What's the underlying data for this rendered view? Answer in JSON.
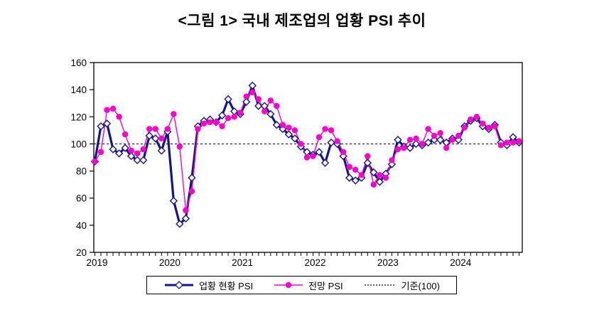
{
  "title": "<그림 1> 국내 제조업의 업황 PSI 추이",
  "colors": {
    "current_line": "#14148C",
    "current_marker_fill": "#FFFFFF",
    "forecast_line": "#FF00CC",
    "baseline_line": "#000000",
    "axis": "#000000",
    "background": "#FFFFFF"
  },
  "legend": {
    "items": [
      {
        "label": "업황 현황 PSI",
        "marker": "diamond",
        "color": "#14148C"
      },
      {
        "label": "전망 PSI",
        "marker": "circle",
        "color": "#FF00CC"
      },
      {
        "label": "기준(100)",
        "marker": "dotted-line",
        "color": "#000000"
      }
    ]
  },
  "chart_data": {
    "type": "line",
    "title": "<그림 1> 국내 제조업의 업황 PSI 추이",
    "x_start": "2019-01",
    "x_end": "2024-11",
    "x_frequency": "monthly",
    "x_tick_labels": [
      "2019",
      "2020",
      "2021",
      "2022",
      "2023",
      "2024"
    ],
    "x_year_start_indices": [
      0,
      12,
      24,
      36,
      48,
      60
    ],
    "y_ticks": [
      20,
      40,
      60,
      80,
      100,
      120,
      140,
      160
    ],
    "ylim": [
      20,
      160
    ],
    "grid": false,
    "legend_position": "bottom",
    "baseline": {
      "label": "기준(100)",
      "value": 100,
      "style": "dotted"
    },
    "series": [
      {
        "name": "업황 현황 PSI",
        "color": "#14148C",
        "marker": "diamond",
        "marker_fill": "#FFFFFF",
        "line_width": 3.2,
        "values": [
          87,
          113,
          115,
          96,
          93,
          97,
          91,
          88,
          88,
          106,
          104,
          95,
          109,
          58,
          41,
          45,
          75,
          113,
          117,
          118,
          116,
          121,
          133,
          124,
          122,
          131,
          143,
          128,
          128,
          122,
          114,
          111,
          107,
          104,
          98,
          94,
          92,
          94,
          86,
          101,
          100,
          91,
          75,
          73,
          75,
          86,
          79,
          72,
          78,
          85,
          103,
          98,
          97,
          100,
          99,
          101,
          103,
          103,
          101,
          104,
          103,
          113,
          117,
          119,
          113,
          111,
          114,
          101,
          99,
          105,
          101
        ]
      },
      {
        "name": "전망 PSI",
        "color": "#FF00CC",
        "marker": "circle",
        "line_width": 1.4,
        "values": [
          87,
          94,
          125,
          126,
          120,
          107,
          95,
          93,
          96,
          111,
          111,
          104,
          111,
          122,
          98,
          51,
          65,
          111,
          115,
          116,
          116,
          113,
          119,
          120,
          123,
          135,
          138,
          133,
          124,
          132,
          128,
          114,
          112,
          110,
          100,
          90,
          91,
          105,
          111,
          110,
          102,
          94,
          83,
          81,
          77,
          91,
          70,
          77,
          75,
          88,
          96,
          97,
          103,
          104,
          100,
          111,
          106,
          108,
          97,
          103,
          106,
          112,
          118,
          120,
          115,
          112,
          113,
          99,
          101,
          101,
          102
        ]
      }
    ]
  }
}
